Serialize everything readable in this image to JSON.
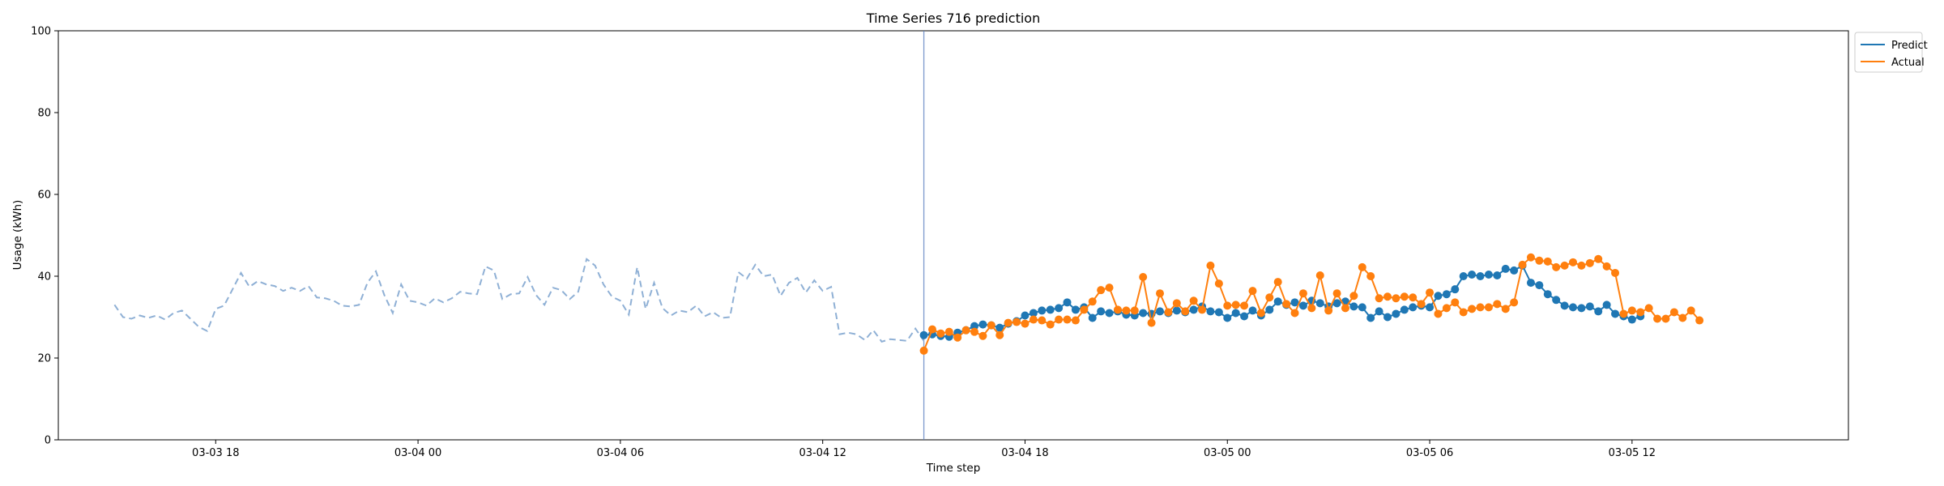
{
  "chart_data": {
    "type": "line",
    "title": "Time Series 716 prediction",
    "xlabel": "Time step",
    "ylabel": "Usage (kWh)",
    "ylim": [
      0,
      100
    ],
    "yticks": [
      "0",
      "20",
      "40",
      "60",
      "80",
      "100"
    ],
    "x_axis": {
      "start": "2024-03-03 15:00",
      "end": "2024-03-05 16:45",
      "ticks": [
        {
          "time": "2024-03-03 18:00",
          "label": "03-03 18"
        },
        {
          "time": "2024-03-04 00:00",
          "label": "03-04 00"
        },
        {
          "time": "2024-03-04 06:00",
          "label": "03-04 06"
        },
        {
          "time": "2024-03-04 12:00",
          "label": "03-04 12"
        },
        {
          "time": "2024-03-04 18:00",
          "label": "03-04 18"
        },
        {
          "time": "2024-03-05 00:00",
          "label": "03-05 00"
        },
        {
          "time": "2024-03-05 06:00",
          "label": "03-05 06"
        },
        {
          "time": "2024-03-05 12:00",
          "label": "03-05 12"
        }
      ]
    },
    "grid": false,
    "legend_position": "outside top-right",
    "forecast_start": "2024-03-04 15:00",
    "history": {
      "start": "2024-03-03 15:00",
      "step_minutes": 15,
      "color": "#8fb0d5",
      "style": "dashed",
      "values": [
        33.0,
        30.0,
        29.6,
        30.4,
        29.8,
        30.4,
        29.4,
        31.0,
        31.6,
        29.6,
        27.6,
        26.6,
        32.0,
        32.8,
        36.8,
        40.8,
        37.4,
        38.8,
        38.0,
        37.6,
        36.4,
        37.2,
        36.4,
        37.6,
        34.8,
        34.6,
        34.0,
        32.8,
        32.6,
        33.0,
        38.4,
        41.2,
        35.4,
        31.0,
        38.0,
        34.0,
        33.6,
        32.8,
        34.6,
        33.6,
        34.6,
        36.2,
        35.8,
        35.6,
        42.4,
        41.4,
        34.4,
        35.6,
        35.8,
        39.8,
        35.4,
        33.0,
        37.2,
        36.6,
        34.4,
        36.2,
        44.2,
        42.6,
        38.0,
        35.0,
        34.0,
        30.6,
        42.2,
        32.0,
        38.4,
        32.2,
        30.4,
        31.6,
        31.2,
        32.8,
        30.2,
        31.2,
        29.8,
        30.0,
        41.0,
        39.4,
        42.8,
        40.0,
        40.4,
        35.2,
        38.4,
        39.6,
        36.0,
        39.0,
        36.4,
        37.4,
        25.8,
        26.2,
        25.8,
        24.4,
        26.8,
        24.0,
        24.6,
        24.4,
        24.2,
        27.2,
        24.2
      ]
    },
    "series": [
      {
        "name": "Predict",
        "color": "#1f77b4",
        "start": "2024-03-04 15:00",
        "step_minutes": 15,
        "values": [
          25.6,
          25.8,
          25.4,
          25.2,
          26.2,
          26.8,
          27.8,
          28.2,
          28.0,
          27.4,
          28.4,
          29.0,
          30.4,
          31.0,
          31.6,
          31.8,
          32.2,
          33.6,
          31.8,
          32.4,
          29.8,
          31.4,
          31.0,
          31.4,
          30.6,
          30.4,
          31.0,
          30.8,
          31.4,
          31.0,
          31.6,
          31.2,
          31.8,
          32.6,
          31.4,
          31.2,
          29.8,
          31.0,
          30.2,
          31.6,
          30.4,
          31.8,
          33.8,
          33.0,
          33.6,
          32.8,
          34.0,
          33.4,
          32.6,
          33.4,
          33.8,
          32.6,
          32.4,
          29.8,
          31.4,
          30.0,
          30.8,
          31.8,
          32.4,
          32.8,
          32.4,
          35.2,
          35.6,
          36.8,
          40.0,
          40.4,
          40.0,
          40.4,
          40.2,
          41.8,
          41.4,
          42.6,
          38.4,
          37.8,
          35.6,
          34.2,
          32.8,
          32.4,
          32.2,
          32.6,
          31.4,
          33.0,
          30.8,
          30.2,
          29.4,
          30.2
        ]
      },
      {
        "name": "Actual",
        "color": "#ff7f0e",
        "start": "2024-03-04 15:00",
        "step_minutes": 15,
        "values": [
          21.8,
          27.0,
          26.0,
          26.4,
          25.0,
          26.8,
          26.4,
          25.4,
          28.0,
          25.6,
          28.6,
          28.8,
          28.4,
          29.4,
          29.2,
          28.2,
          29.4,
          29.4,
          29.2,
          31.8,
          33.8,
          36.6,
          37.2,
          31.8,
          31.6,
          31.6,
          39.8,
          28.6,
          35.8,
          31.2,
          33.4,
          31.4,
          34.0,
          31.8,
          42.6,
          38.2,
          32.8,
          33.0,
          32.8,
          36.4,
          31.0,
          34.8,
          38.6,
          33.2,
          31.0,
          35.8,
          32.2,
          40.2,
          31.6,
          35.8,
          32.2,
          35.2,
          42.2,
          40.0,
          34.6,
          35.0,
          34.6,
          35.0,
          34.8,
          33.2,
          36.0,
          30.8,
          32.2,
          33.6,
          31.2,
          32.0,
          32.4,
          32.4,
          33.2,
          32.0,
          33.6,
          42.8,
          44.6,
          43.8,
          43.6,
          42.2,
          42.6,
          43.4,
          42.6,
          43.2,
          44.2,
          42.4,
          40.8,
          30.8,
          31.6,
          31.2,
          32.2,
          29.6,
          29.6,
          31.2,
          29.8,
          31.6,
          29.2
        ]
      }
    ]
  }
}
